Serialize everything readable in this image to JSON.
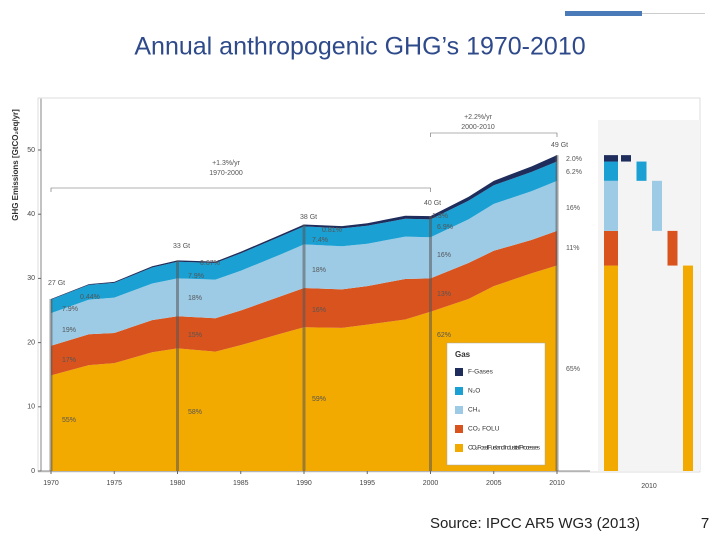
{
  "title": "Annual anthropogenic GHG’s 1970-2010",
  "source": "Source: IPCC AR5 WG3 (2013)",
  "page_number": "7",
  "chart_data": {
    "type": "stacked-area",
    "y_label": "GHG Emissions [GtCO₂eq/yr]",
    "x": [
      1970,
      1973,
      1975,
      1978,
      1980,
      1983,
      1985,
      1988,
      1990,
      1993,
      1995,
      1998,
      2000,
      2003,
      2005,
      2008,
      2010
    ],
    "xlim": [
      1970,
      2010
    ],
    "xticks": [
      1970,
      1975,
      1980,
      1985,
      1990,
      1995,
      2000,
      2005,
      2010
    ],
    "ylim": [
      0,
      58
    ],
    "yticks": [
      0,
      10,
      20,
      30,
      40,
      50
    ],
    "legend_title": "Gas",
    "series": [
      {
        "name": "CO₂ Fossil Fuel and Industrial Processes",
        "color": "#f2a900",
        "values": [
          14.9,
          16.5,
          16.8,
          18.5,
          19.1,
          18.6,
          19.6,
          21.3,
          22.4,
          22.3,
          22.8,
          23.6,
          24.8,
          26.8,
          28.8,
          30.8,
          32.0
        ]
      },
      {
        "name": "CO₂ FOLU",
        "color": "#d9531e",
        "values": [
          4.6,
          4.8,
          4.7,
          5.0,
          5.0,
          5.2,
          5.4,
          5.8,
          6.1,
          6.0,
          6.0,
          6.3,
          5.2,
          5.6,
          5.5,
          5.2,
          5.4
        ]
      },
      {
        "name": "CH₄",
        "color": "#9dcbe6",
        "values": [
          5.1,
          5.4,
          5.5,
          5.7,
          5.9,
          6.0,
          6.2,
          6.5,
          6.8,
          6.7,
          6.6,
          6.6,
          6.4,
          6.8,
          7.3,
          7.6,
          7.8
        ]
      },
      {
        "name": "N₂O",
        "color": "#1aa0d2",
        "values": [
          2.1,
          2.3,
          2.3,
          2.5,
          2.6,
          2.6,
          2.7,
          2.8,
          2.8,
          2.8,
          2.8,
          2.8,
          2.8,
          2.9,
          2.9,
          3.0,
          3.0
        ]
      },
      {
        "name": "F-Gases",
        "color": "#1f2d5c",
        "values": [
          0.1,
          0.1,
          0.15,
          0.2,
          0.2,
          0.22,
          0.25,
          0.28,
          0.3,
          0.35,
          0.4,
          0.45,
          0.5,
          0.6,
          0.7,
          0.85,
          1.0
        ]
      }
    ],
    "annotations": [
      "+2.2%/yr",
      "2000-2010",
      "+1.3%/yr",
      "1970-2000",
      "27 Gt",
      "33 Gt",
      "38 Gt",
      "40 Gt",
      "49 Gt",
      "0.44%",
      "7.9%",
      "19%",
      "17%",
      "55%",
      "0.67%",
      "7.9%",
      "18%",
      "15%",
      "58%",
      "0.81%",
      "7.4%",
      "18%",
      "16%",
      "59%",
      "1.3%",
      "6.9%",
      "16%",
      "13%",
      "62%",
      "2.0%",
      "6.2%",
      "16%",
      "11%",
      "65%"
    ],
    "right_panel_label": "2010"
  }
}
